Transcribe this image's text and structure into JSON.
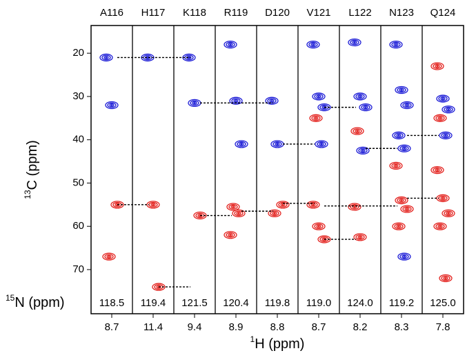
{
  "chart_data": {
    "type": "strip",
    "y_label": {
      "sup": "13",
      "text": "C (ppm)"
    },
    "x_label": {
      "sup": "1",
      "text": "H (ppm)"
    },
    "n15_label": {
      "sup": "15",
      "text": "N (ppm)"
    },
    "ylim": [
      13.6,
      80.2
    ],
    "y_inverted": true,
    "yticks": [
      20,
      30,
      40,
      50,
      60,
      70
    ],
    "colors": {
      "blue": "#1a1ad6",
      "red": "#e3201c"
    },
    "strips": [
      {
        "label": "A116",
        "n15": "118.5",
        "h1": "8.7",
        "peaks": [
          {
            "c13": 21,
            "color": "blue"
          },
          {
            "c13": 32,
            "color": "blue"
          },
          {
            "c13": 55,
            "color": "red"
          },
          {
            "c13": 67,
            "color": "red"
          }
        ]
      },
      {
        "label": "H117",
        "n15": "119.4",
        "h1": "11.4",
        "peaks": [
          {
            "c13": 21,
            "color": "blue"
          },
          {
            "c13": 55,
            "color": "red"
          },
          {
            "c13": 74,
            "color": "red"
          }
        ]
      },
      {
        "label": "K118",
        "n15": "121.5",
        "h1": "9.4",
        "peaks": [
          {
            "c13": 21,
            "color": "blue"
          },
          {
            "c13": 31.5,
            "color": "blue"
          },
          {
            "c13": 57.5,
            "color": "red"
          }
        ]
      },
      {
        "label": "R119",
        "n15": "120.4",
        "h1": "8.9",
        "peaks": [
          {
            "c13": 18,
            "color": "blue"
          },
          {
            "c13": 31,
            "color": "blue"
          },
          {
            "c13": 41,
            "color": "blue"
          },
          {
            "c13": 55.5,
            "color": "red"
          },
          {
            "c13": 57,
            "color": "red"
          },
          {
            "c13": 62,
            "color": "red"
          }
        ]
      },
      {
        "label": "D120",
        "n15": "119.8",
        "h1": "8.8",
        "peaks": [
          {
            "c13": 31,
            "color": "blue"
          },
          {
            "c13": 41,
            "color": "blue"
          },
          {
            "c13": 55,
            "color": "red"
          },
          {
            "c13": 57,
            "color": "red"
          }
        ]
      },
      {
        "label": "V121",
        "n15": "119.0",
        "h1": "8.7",
        "peaks": [
          {
            "c13": 18,
            "color": "blue"
          },
          {
            "c13": 30,
            "color": "blue"
          },
          {
            "c13": 32.5,
            "color": "blue"
          },
          {
            "c13": 35,
            "color": "red"
          },
          {
            "c13": 41,
            "color": "blue"
          },
          {
            "c13": 55,
            "color": "red"
          },
          {
            "c13": 60,
            "color": "red"
          },
          {
            "c13": 63,
            "color": "red"
          }
        ]
      },
      {
        "label": "L122",
        "n15": "124.0",
        "h1": "8.2",
        "peaks": [
          {
            "c13": 17.5,
            "color": "blue"
          },
          {
            "c13": 30,
            "color": "blue"
          },
          {
            "c13": 32.5,
            "color": "blue"
          },
          {
            "c13": 38,
            "color": "red"
          },
          {
            "c13": 42.5,
            "color": "blue"
          },
          {
            "c13": 55.5,
            "color": "red"
          },
          {
            "c13": 62.5,
            "color": "red"
          }
        ]
      },
      {
        "label": "N123",
        "n15": "119.2",
        "h1": "8.3",
        "peaks": [
          {
            "c13": 18,
            "color": "blue"
          },
          {
            "c13": 28.5,
            "color": "blue"
          },
          {
            "c13": 32,
            "color": "blue"
          },
          {
            "c13": 39,
            "color": "blue"
          },
          {
            "c13": 42,
            "color": "blue"
          },
          {
            "c13": 46,
            "color": "red"
          },
          {
            "c13": 54,
            "color": "red"
          },
          {
            "c13": 56,
            "color": "red"
          },
          {
            "c13": 60,
            "color": "red"
          },
          {
            "c13": 67,
            "color": "blue"
          }
        ]
      },
      {
        "label": "Q124",
        "n15": "125.0",
        "h1": "7.8",
        "peaks": [
          {
            "c13": 23,
            "color": "red"
          },
          {
            "c13": 30.5,
            "color": "blue"
          },
          {
            "c13": 33,
            "color": "blue"
          },
          {
            "c13": 35,
            "color": "red"
          },
          {
            "c13": 39,
            "color": "blue"
          },
          {
            "c13": 47,
            "color": "red"
          },
          {
            "c13": 53.5,
            "color": "red"
          },
          {
            "c13": 57,
            "color": "red"
          },
          {
            "c13": 60,
            "color": "red"
          },
          {
            "c13": 72,
            "color": "red"
          }
        ]
      }
    ],
    "connections": [
      {
        "from": 0,
        "to": 2,
        "c13": 21
      },
      {
        "from": 0,
        "to": 1,
        "c13": 55
      },
      {
        "from": 1,
        "to": 2,
        "c13": 74
      },
      {
        "from": 2,
        "to": 4,
        "c13": 31.5
      },
      {
        "from": 2,
        "to": 3,
        "c13": 57.5
      },
      {
        "from": 3,
        "to": 4,
        "c13": 56.5
      },
      {
        "from": 4,
        "to": 5,
        "c13": 41
      },
      {
        "from": 4,
        "to": 5,
        "c13": 54.7
      },
      {
        "from": 5,
        "to": 6,
        "c13": 32.5
      },
      {
        "from": 5,
        "to": 6,
        "c13": 63
      },
      {
        "from": 5,
        "to": 7,
        "c13": 55.3
      },
      {
        "from": 6,
        "to": 7,
        "c13": 42
      },
      {
        "from": 7,
        "to": 8,
        "c13": 39
      },
      {
        "from": 7,
        "to": 8,
        "c13": 53.5
      }
    ]
  }
}
